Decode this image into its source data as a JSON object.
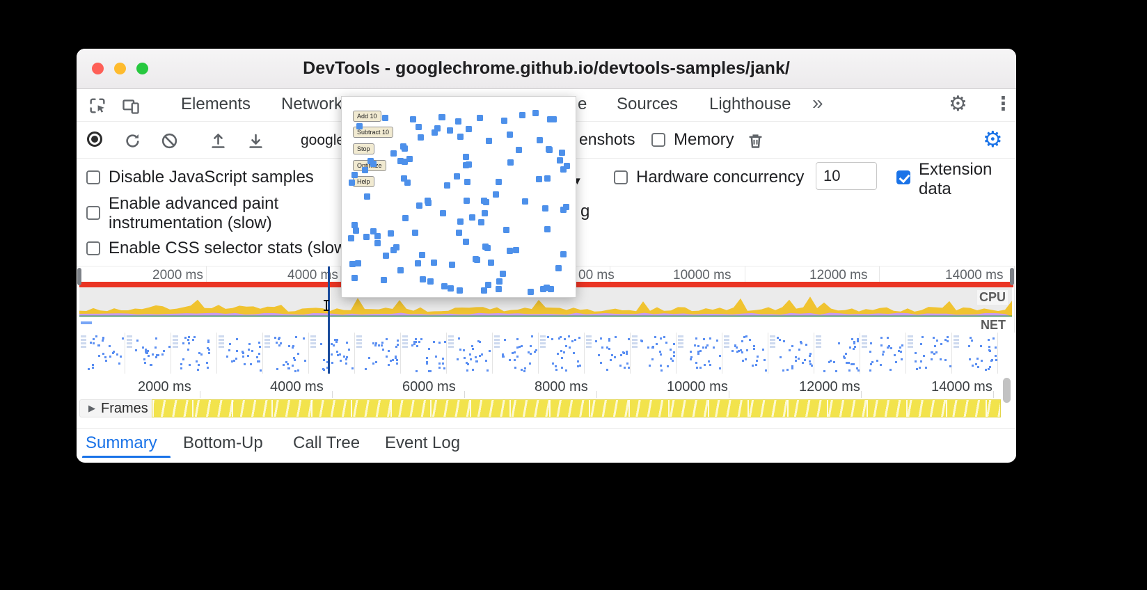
{
  "window": {
    "title": "DevTools - googlechrome.github.io/devtools-samples/jank/"
  },
  "icons": {
    "gear": "⚙",
    "menu_dots": "⋮",
    "more_chevron": "»",
    "caret_down": "▼",
    "disclosure_triangle": "▶"
  },
  "tabs": {
    "elements": "Elements",
    "network": "Network",
    "hidden_fragment": "e",
    "sources": "Sources",
    "lighthouse": "Lighthouse"
  },
  "toolbar": {
    "page_fragment": "google",
    "screenshots_fragment": "enshots",
    "memory_label": "Memory"
  },
  "settings": {
    "disable_js": "Disable JavaScript samples",
    "advanced_paint": "Enable advanced paint instrumentation (slow)",
    "css_selector": "Enable CSS selector stats (slow",
    "hidden_fragment": "g",
    "hardware_label": "Hardware concurrency",
    "hardware_value": "10",
    "extension_label": "Extension data"
  },
  "preview": {
    "buttons": [
      "Add 10",
      "Subtract 10",
      "Stop",
      "Optimize",
      "Help"
    ]
  },
  "rulers": {
    "overview": [
      "2000 ms",
      "4000 ms",
      "00 ms",
      "10000 ms",
      "12000 ms",
      "14000 ms"
    ],
    "detail": [
      "2000 ms",
      "4000 ms",
      "6000 ms",
      "8000 ms",
      "10000 ms",
      "12000 ms",
      "14000 ms"
    ]
  },
  "tracks": {
    "cpu": "CPU",
    "net": "NET",
    "frames": "Frames"
  },
  "bottom_tabs": {
    "items": [
      "Summary",
      "Bottom-Up",
      "Call Tree",
      "Event Log"
    ],
    "active": "Summary"
  },
  "colors": {
    "accent": "#1a73e8",
    "long_task_red": "#ea3423",
    "cpu_yellow": "#f0c330",
    "cpu_rendering_purple": "#c89bef",
    "cpu_paint_green": "#2f9e4f",
    "frames_yellow": "#f2e34c",
    "preview_square_blue": "#4d90ea",
    "playhead_blue": "#1b4c9c"
  }
}
